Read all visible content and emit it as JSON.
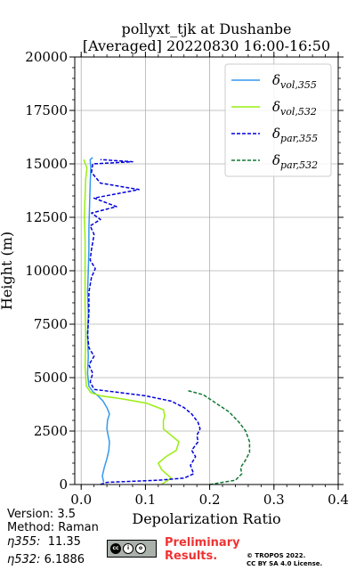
{
  "chart_data": {
    "type": "line",
    "title": [
      "pollyxt_tjk at Dushanbe",
      "[Averaged] 20220830 16:00-16:50"
    ],
    "xlabel": "Depolarization Ratio",
    "ylabel": "Height (m)",
    "xlim": [
      -0.01,
      0.4
    ],
    "ylim": [
      0,
      20000
    ],
    "xticks": [
      "0.0",
      "0.1",
      "0.2",
      "0.3",
      "0.4"
    ],
    "xtick_values": [
      0,
      0.1,
      0.2,
      0.3,
      0.4
    ],
    "yticks": [
      "0",
      "2500",
      "5000",
      "7500",
      "10000",
      "12500",
      "15000",
      "17500",
      "20000"
    ],
    "ytick_values": [
      0,
      2500,
      5000,
      7500,
      10000,
      12500,
      15000,
      17500,
      20000
    ],
    "grid": true,
    "legend_position": "top-right",
    "series": [
      {
        "name": "δvol,355",
        "legend_base": "δ",
        "legend_sub": "vol,355",
        "color": "#3399ee",
        "dash": "solid",
        "points": [
          [
            0.035,
            100
          ],
          [
            0.033,
            400
          ],
          [
            0.036,
            800
          ],
          [
            0.04,
            1200
          ],
          [
            0.043,
            1600
          ],
          [
            0.044,
            2000
          ],
          [
            0.042,
            2300
          ],
          [
            0.04,
            2600
          ],
          [
            0.041,
            3000
          ],
          [
            0.044,
            3300
          ],
          [
            0.04,
            3600
          ],
          [
            0.034,
            3900
          ],
          [
            0.026,
            4150
          ],
          [
            0.018,
            4350
          ],
          [
            0.012,
            4600
          ],
          [
            0.01,
            5200
          ],
          [
            0.011,
            6000
          ],
          [
            0.01,
            7000
          ],
          [
            0.011,
            8000
          ],
          [
            0.01,
            9000
          ],
          [
            0.011,
            10000
          ],
          [
            0.012,
            11000
          ],
          [
            0.012,
            12000
          ],
          [
            0.013,
            13000
          ],
          [
            0.014,
            14000
          ],
          [
            0.015,
            14800
          ],
          [
            0.014,
            15200
          ],
          [
            0.018,
            15300
          ]
        ]
      },
      {
        "name": "δvol,532",
        "legend_base": "δ",
        "legend_sub": "vol,532",
        "color": "#99ee11",
        "dash": "solid",
        "points": [
          [
            0.125,
            0
          ],
          [
            0.14,
            300
          ],
          [
            0.125,
            700
          ],
          [
            0.12,
            1000
          ],
          [
            0.132,
            1300
          ],
          [
            0.148,
            1600
          ],
          [
            0.152,
            2000
          ],
          [
            0.14,
            2300
          ],
          [
            0.128,
            2600
          ],
          [
            0.128,
            3000
          ],
          [
            0.13,
            3200
          ],
          [
            0.128,
            3500
          ],
          [
            0.102,
            3800
          ],
          [
            0.065,
            4000
          ],
          [
            0.03,
            4150
          ],
          [
            0.015,
            4300
          ],
          [
            0.008,
            4600
          ],
          [
            0.006,
            5500
          ],
          [
            0.007,
            7000
          ],
          [
            0.006,
            8500
          ],
          [
            0.006,
            10000
          ],
          [
            0.006,
            11500
          ],
          [
            0.005,
            12500
          ],
          [
            0.006,
            13500
          ],
          [
            0.007,
            14300
          ],
          [
            0.009,
            14800
          ],
          [
            0.004,
            15200
          ]
        ]
      },
      {
        "name": "δpar,355",
        "legend_base": "δ",
        "legend_sub": "par,355",
        "color": "#0000dd",
        "dash": "4,2",
        "points": [
          [
            0.03,
            0
          ],
          [
            0.04,
            100
          ],
          [
            0.08,
            150
          ],
          [
            0.12,
            200
          ],
          [
            0.16,
            300
          ],
          [
            0.175,
            500
          ],
          [
            0.17,
            900
          ],
          [
            0.178,
            1300
          ],
          [
            0.172,
            1600
          ],
          [
            0.182,
            2000
          ],
          [
            0.18,
            2300
          ],
          [
            0.185,
            2600
          ],
          [
            0.182,
            2900
          ],
          [
            0.172,
            3300
          ],
          [
            0.16,
            3600
          ],
          [
            0.14,
            3900
          ],
          [
            0.1,
            4150
          ],
          [
            0.06,
            4300
          ],
          [
            0.02,
            4450
          ],
          [
            0.014,
            4800
          ],
          [
            0.018,
            5200
          ],
          [
            0.012,
            5600
          ],
          [
            0.02,
            6000
          ],
          [
            0.012,
            6400
          ],
          [
            0.01,
            7000
          ],
          [
            0.012,
            8000
          ],
          [
            0.012,
            9000
          ],
          [
            0.016,
            9700
          ],
          [
            0.022,
            10100
          ],
          [
            0.014,
            10500
          ],
          [
            0.016,
            11000
          ],
          [
            0.02,
            11700
          ],
          [
            0.014,
            12100
          ],
          [
            0.03,
            12400
          ],
          [
            0.016,
            12700
          ],
          [
            0.055,
            13000
          ],
          [
            0.02,
            13400
          ],
          [
            0.09,
            13800
          ],
          [
            0.03,
            14100
          ],
          [
            0.016,
            14600
          ],
          [
            0.018,
            15000
          ],
          [
            0.08,
            15100
          ],
          [
            0.03,
            15200
          ]
        ]
      },
      {
        "name": "δpar,532",
        "legend_base": "δ",
        "legend_sub": "par,532",
        "color": "#117733",
        "dash": "4,2",
        "points": [
          [
            0.2,
            0
          ],
          [
            0.24,
            200
          ],
          [
            0.25,
            500
          ],
          [
            0.248,
            800
          ],
          [
            0.255,
            1100
          ],
          [
            0.262,
            1500
          ],
          [
            0.262,
            2000
          ],
          [
            0.256,
            2500
          ],
          [
            0.246,
            2900
          ],
          [
            0.23,
            3400
          ],
          [
            0.21,
            3800
          ],
          [
            0.19,
            4200
          ],
          [
            0.165,
            4400
          ]
        ]
      }
    ]
  },
  "meta": {
    "version": "Version: 3.5",
    "method": "Method: Raman",
    "eta355_label": "η355:",
    "eta355_value": "11.35",
    "eta532_label": "η532:",
    "eta532_value": "6.1886"
  },
  "footer": {
    "preliminary_line1": "Preliminary",
    "preliminary_line2": "Results.",
    "copyright": "© TROPOS 2022.",
    "license": "CC BY SA 4.0 License.",
    "cc_logo_marks": [
      "cc",
      "i",
      "o"
    ]
  }
}
